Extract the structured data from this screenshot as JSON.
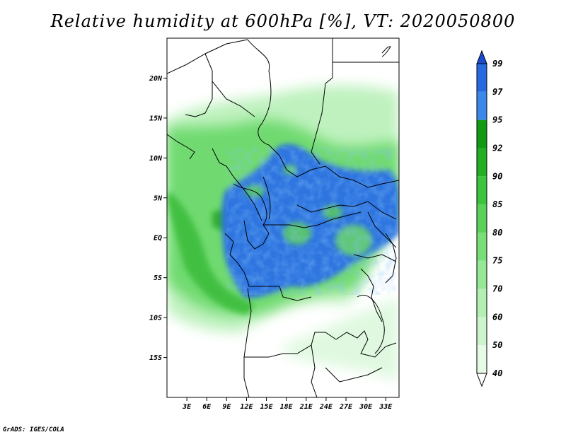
{
  "title": "Relative humidity at 600hPa [%], VT: 2020050800",
  "credit": "GrADS: IGES/COLA",
  "map": {
    "lon_range": [
      0,
      35
    ],
    "lat_range": [
      -20,
      25
    ],
    "lat_ticks": [
      {
        "value": 20,
        "label": "20N"
      },
      {
        "value": 15,
        "label": "15N"
      },
      {
        "value": 10,
        "label": "10N"
      },
      {
        "value": 5,
        "label": "5N"
      },
      {
        "value": 0,
        "label": "EQ"
      },
      {
        "value": -5,
        "label": "5S"
      },
      {
        "value": -10,
        "label": "10S"
      },
      {
        "value": -15,
        "label": "15S"
      }
    ],
    "lon_ticks": [
      {
        "value": 3,
        "label": "3E"
      },
      {
        "value": 6,
        "label": "6E"
      },
      {
        "value": 9,
        "label": "9E"
      },
      {
        "value": 12,
        "label": "12E"
      },
      {
        "value": 15,
        "label": "15E"
      },
      {
        "value": 18,
        "label": "18E"
      },
      {
        "value": 21,
        "label": "21E"
      },
      {
        "value": 24,
        "label": "24E"
      },
      {
        "value": 27,
        "label": "27E"
      },
      {
        "value": 30,
        "label": "30E"
      },
      {
        "value": 33,
        "label": "33E"
      }
    ]
  },
  "colorbar": {
    "levels": [
      "40",
      "50",
      "60",
      "70",
      "75",
      "80",
      "85",
      "90",
      "92",
      "95",
      "97",
      "99"
    ],
    "colors": [
      "#ffffff",
      "#e6fbe6",
      "#cdf5cd",
      "#b3efb3",
      "#96e796",
      "#78de78",
      "#5ad25a",
      "#3cc43c",
      "#22b022",
      "#139a13",
      "#3a88ea",
      "#2868e0",
      "#1a4ad0"
    ]
  }
}
